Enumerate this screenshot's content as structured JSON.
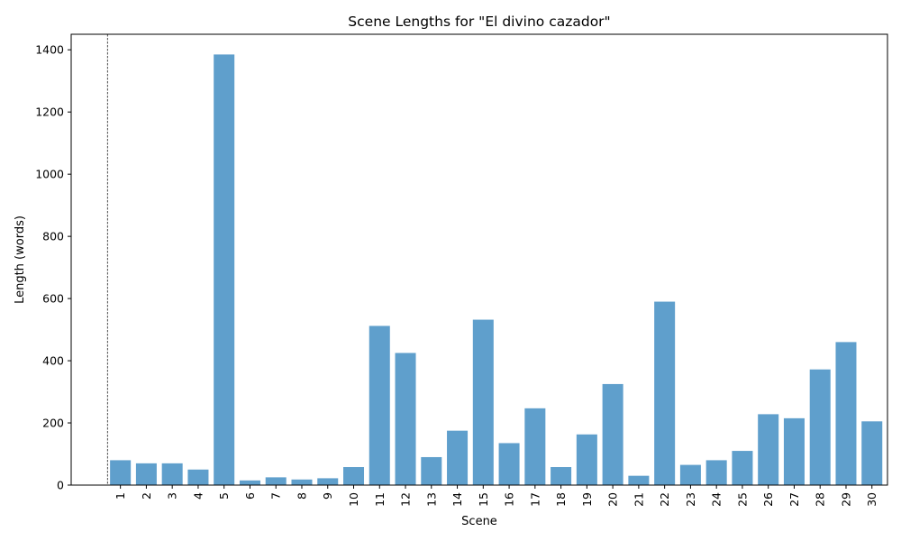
{
  "chart_data": {
    "type": "bar",
    "title": "Scene Lengths for \"El divino cazador\"",
    "xlabel": "Scene",
    "ylabel": "Length (words)",
    "categories": [
      "1",
      "2",
      "3",
      "4",
      "5",
      "6",
      "7",
      "8",
      "9",
      "10",
      "11",
      "12",
      "13",
      "14",
      "15",
      "16",
      "17",
      "18",
      "19",
      "20",
      "21",
      "22",
      "23",
      "24",
      "25",
      "26",
      "27",
      "28",
      "29",
      "30"
    ],
    "values": [
      80,
      70,
      70,
      50,
      1385,
      15,
      25,
      18,
      22,
      58,
      512,
      425,
      90,
      175,
      532,
      135,
      247,
      58,
      163,
      325,
      30,
      590,
      65,
      80,
      110,
      228,
      215,
      372,
      460,
      205
    ],
    "ylim": [
      0,
      1450
    ],
    "yticks": [
      0,
      200,
      400,
      600,
      800,
      1000,
      1200,
      1400
    ],
    "bar_color": "#5f9fcc",
    "reference_line": {
      "x": 0.5,
      "style": "dashed",
      "color": "#000000"
    },
    "grid": false,
    "legend": "none"
  }
}
